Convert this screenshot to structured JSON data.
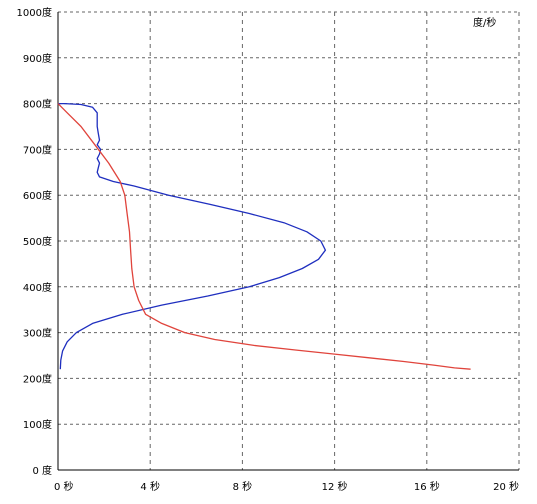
{
  "chart_data": {
    "type": "line",
    "title": "",
    "unit_label": "度/秒",
    "xlim": [
      0,
      20
    ],
    "ylim": [
      0,
      1000
    ],
    "grid": true,
    "x_ticks": [
      {
        "value": 0,
        "label": "0 秒"
      },
      {
        "value": 4,
        "label": "4 秒"
      },
      {
        "value": 8,
        "label": "8 秒"
      },
      {
        "value": 12,
        "label": "12 秒"
      },
      {
        "value": 16,
        "label": "16 秒"
      },
      {
        "value": 20,
        "label": "20 秒"
      }
    ],
    "y_ticks": [
      {
        "value": 0,
        "label": "0 度"
      },
      {
        "value": 100,
        "label": "100度"
      },
      {
        "value": 200,
        "label": "200度"
      },
      {
        "value": 300,
        "label": "300度"
      },
      {
        "value": 400,
        "label": "400度"
      },
      {
        "value": 500,
        "label": "500度"
      },
      {
        "value": 600,
        "label": "600度"
      },
      {
        "value": 700,
        "label": "700度"
      },
      {
        "value": 800,
        "label": "800度"
      },
      {
        "value": 900,
        "label": "900度"
      },
      {
        "value": 1000,
        "label": "1000度"
      }
    ],
    "series": [
      {
        "color": "#1f2fbf",
        "points": [
          [
            0.1,
            220
          ],
          [
            0.12,
            240
          ],
          [
            0.2,
            260
          ],
          [
            0.4,
            280
          ],
          [
            0.8,
            300
          ],
          [
            1.5,
            320
          ],
          [
            2.8,
            340
          ],
          [
            4.5,
            360
          ],
          [
            6.5,
            380
          ],
          [
            8.3,
            400
          ],
          [
            9.6,
            420
          ],
          [
            10.6,
            440
          ],
          [
            11.3,
            460
          ],
          [
            11.6,
            480
          ],
          [
            11.4,
            500
          ],
          [
            10.8,
            520
          ],
          [
            9.8,
            540
          ],
          [
            8.3,
            560
          ],
          [
            6.6,
            580
          ],
          [
            4.8,
            600
          ],
          [
            3.3,
            620
          ],
          [
            2.4,
            630
          ],
          [
            1.8,
            640
          ],
          [
            1.7,
            650
          ],
          [
            1.75,
            660
          ],
          [
            1.8,
            670
          ],
          [
            1.7,
            680
          ],
          [
            1.8,
            690
          ],
          [
            1.85,
            700
          ],
          [
            1.7,
            710
          ],
          [
            1.8,
            720
          ],
          [
            1.75,
            735
          ],
          [
            1.7,
            750
          ],
          [
            1.7,
            765
          ],
          [
            1.7,
            780
          ],
          [
            1.5,
            792
          ],
          [
            1.0,
            798
          ],
          [
            0.3,
            800
          ],
          [
            0.0,
            800
          ]
        ]
      },
      {
        "color": "#e0443c",
        "points": [
          [
            0.0,
            800
          ],
          [
            0.4,
            780
          ],
          [
            1.0,
            750
          ],
          [
            1.6,
            710
          ],
          [
            2.2,
            670
          ],
          [
            2.7,
            630
          ],
          [
            2.9,
            600
          ],
          [
            3.0,
            560
          ],
          [
            3.1,
            520
          ],
          [
            3.15,
            480
          ],
          [
            3.2,
            440
          ],
          [
            3.3,
            400
          ],
          [
            3.5,
            370
          ],
          [
            3.8,
            340
          ],
          [
            4.5,
            320
          ],
          [
            5.5,
            300
          ],
          [
            6.8,
            285
          ],
          [
            8.5,
            272
          ],
          [
            10.3,
            262
          ],
          [
            12.0,
            253
          ],
          [
            13.5,
            245
          ],
          [
            15.0,
            237
          ],
          [
            16.3,
            229
          ],
          [
            17.2,
            223
          ],
          [
            17.9,
            220
          ]
        ]
      }
    ]
  }
}
